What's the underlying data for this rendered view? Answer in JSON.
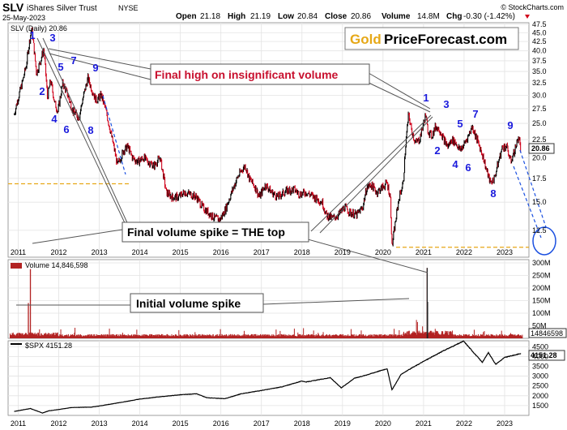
{
  "header": {
    "symbol": "SLV",
    "name": "iShares Silver Trust",
    "exchange": "NYSE",
    "date": "25-May-2023",
    "open_label": "Open",
    "open": "21.18",
    "high_label": "High",
    "high": "21.19",
    "low_label": "Low",
    "low": "20.84",
    "close_label": "Close",
    "close": "20.86",
    "volume_label": "Volume",
    "volume": "14.8M",
    "chg_label": "Chg",
    "chg": "-0.30 (-1.42%)",
    "chg_arrow_icon": "triangle-down-icon",
    "credit": "© StockCharts.com"
  },
  "logo": {
    "part1": "Gold",
    "part2": "PriceForecast.com",
    "color1": "#e6a817"
  },
  "colors": {
    "up": "#000000",
    "down": "#d0021b",
    "volume": "#b22222",
    "wave": "#1a1adc",
    "note_red": "#c8102e",
    "support": "#e6a817",
    "target_circle": "#1a4fe0"
  },
  "annotations": {
    "final_high": "Final high on insignificant volume",
    "final_spike": "Final volume spike = THE top",
    "initial_spike": "Initial volume spike"
  },
  "chart_data": [
    {
      "type": "line",
      "title": "SLV (Daily) 20.86",
      "last_value_label": "20.86",
      "y_scale": "log",
      "ylim": [
        10.5,
        48
      ],
      "x_ticks": [
        "2011",
        "2012",
        "2013",
        "2014",
        "2015",
        "2016",
        "2017",
        "2018",
        "2019",
        "2020",
        "2021",
        "2022",
        "2023"
      ],
      "y_ticks": [
        "47.5",
        "45.0",
        "42.5",
        "40.0",
        "37.5",
        "35.0",
        "32.5",
        "30.0",
        "27.5",
        "25.0",
        "22.5",
        "20.0",
        "17.5",
        "15.0",
        "12.5"
      ],
      "series": [
        {
          "x": [
            2010.9,
            2011.0,
            2011.1,
            2011.2,
            2011.33,
            2011.45,
            2011.55,
            2011.63,
            2011.72,
            2011.8,
            2011.9,
            2011.98,
            2012.1,
            2012.2,
            2012.35,
            2012.5,
            2012.6,
            2012.72,
            2012.8,
            2012.92,
            2013.05,
            2013.15,
            2013.3,
            2013.45,
            2013.6,
            2013.7,
            2013.82,
            2013.95,
            2014.1,
            2014.2,
            2014.35,
            2014.5,
            2014.65,
            2014.8,
            2014.95,
            2015.1,
            2015.25,
            2015.4,
            2015.55,
            2015.7,
            2015.85,
            2015.98,
            2016.1,
            2016.25,
            2016.4,
            2016.52,
            2016.6,
            2016.7,
            2016.85,
            2016.95,
            2017.1,
            2017.25,
            2017.4,
            2017.5,
            2017.65,
            2017.8,
            2017.95,
            2018.1,
            2018.3,
            2018.5,
            2018.6,
            2018.75,
            2018.9,
            2019.05,
            2019.2,
            2019.35,
            2019.5,
            2019.6,
            2019.7,
            2019.85,
            2019.98,
            2020.1,
            2020.18,
            2020.22,
            2020.3,
            2020.4,
            2020.5,
            2020.55,
            2020.6,
            2020.63,
            2020.7,
            2020.8,
            2020.9,
            2021.0,
            2021.05,
            2021.1,
            2021.2,
            2021.3,
            2021.4,
            2021.5,
            2021.6,
            2021.7,
            2021.8,
            2021.9,
            2022.0,
            2022.1,
            2022.2,
            2022.35,
            2022.45,
            2022.55,
            2022.65,
            2022.75,
            2022.85,
            2022.95,
            2023.05,
            2023.15,
            2023.25,
            2023.35,
            2023.4
          ],
          "values": [
            26.5,
            29.5,
            32.5,
            36.5,
            46.5,
            34.5,
            37.5,
            40.5,
            29.5,
            33.0,
            28.5,
            27.0,
            32.5,
            30.5,
            27.0,
            26.0,
            29.5,
            33.5,
            31.5,
            29.0,
            30.0,
            27.5,
            23.0,
            19.0,
            21.0,
            21.5,
            20.0,
            19.5,
            20.0,
            19.5,
            19.0,
            20.0,
            16.0,
            15.5,
            15.5,
            16.0,
            15.8,
            15.5,
            14.5,
            14.0,
            13.5,
            13.4,
            14.2,
            15.8,
            17.5,
            18.5,
            19.0,
            17.5,
            16.5,
            15.5,
            16.8,
            16.0,
            15.5,
            15.8,
            16.2,
            16.3,
            15.8,
            16.0,
            15.5,
            15.0,
            13.8,
            13.5,
            13.8,
            14.5,
            14.0,
            13.8,
            14.5,
            16.5,
            16.8,
            16.0,
            16.5,
            17.0,
            15.5,
            11.2,
            13.0,
            15.5,
            17.0,
            21.0,
            24.5,
            26.5,
            24.0,
            22.0,
            22.5,
            25.0,
            26.5,
            24.0,
            23.0,
            24.5,
            24.0,
            22.5,
            21.5,
            22.5,
            22.0,
            21.0,
            21.8,
            23.0,
            24.5,
            22.0,
            20.5,
            18.5,
            17.0,
            17.5,
            19.5,
            21.5,
            21.5,
            19.5,
            21.0,
            23.0,
            20.86
          ],
          "overlay": {
            "waves_left": [
              "1",
              "2",
              "3",
              "4",
              "5",
              "6",
              "7",
              "8",
              "9"
            ],
            "waves_right": [
              "1",
              "2",
              "3",
              "4",
              "5",
              "6",
              "7",
              "8",
              "9"
            ]
          },
          "support_levels": [
            16.9,
            11.2
          ],
          "projected_target_low": 11.4
        }
      ]
    },
    {
      "type": "bar",
      "title": "Volume 14,846,598",
      "last_value_label": "14846598",
      "ylim": [
        0,
        300
      ],
      "y_unit": "M",
      "y_ticks": [
        "300M",
        "250M",
        "200M",
        "150M",
        "100M",
        "50M"
      ],
      "spikes": [
        {
          "x": 2011.3,
          "value": 275
        },
        {
          "x": 2011.25,
          "value": 140
        },
        {
          "x": 2021.09,
          "value": 280
        },
        {
          "x": 2021.1,
          "value": 145
        }
      ],
      "baseline_level": 12
    },
    {
      "type": "line",
      "title": "$SPX 4151.28",
      "last_value_label": "4151.28",
      "ylim": [
        1000,
        4800
      ],
      "y_ticks": [
        "4500",
        "4000",
        "3500",
        "3000",
        "2500",
        "2000",
        "1500"
      ],
      "series": [
        {
          "x": [
            2010.9,
            2011.3,
            2011.6,
            2011.75,
            2012.0,
            2012.3,
            2012.8,
            2013.0,
            2013.5,
            2014.0,
            2014.5,
            2015.0,
            2015.4,
            2015.65,
            2016.1,
            2016.5,
            2017.0,
            2017.5,
            2018.0,
            2018.1,
            2018.7,
            2018.97,
            2019.3,
            2019.5,
            2020.1,
            2020.22,
            2020.45,
            2020.7,
            2021.0,
            2021.5,
            2021.99,
            2022.45,
            2022.6,
            2022.78,
            2023.0,
            2023.4
          ],
          "values": [
            1200,
            1350,
            1120,
            1230,
            1300,
            1400,
            1420,
            1480,
            1650,
            1830,
            1950,
            2050,
            2100,
            1900,
            1850,
            2100,
            2270,
            2450,
            2750,
            2700,
            2920,
            2400,
            2900,
            3000,
            3380,
            2300,
            3100,
            3400,
            3750,
            4300,
            4780,
            3700,
            4200,
            3600,
            3950,
            4151
          ]
        }
      ]
    }
  ]
}
